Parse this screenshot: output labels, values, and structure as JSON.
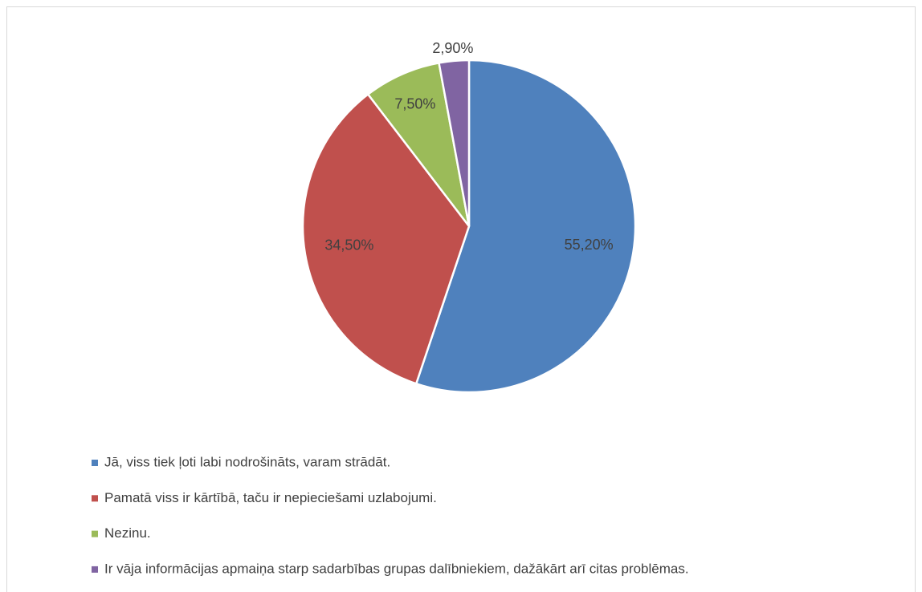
{
  "chart_data": {
    "type": "pie",
    "categories": [
      "Jā, viss tiek ļoti labi nodrošināts, varam strādāt.",
      "Pamatā viss ir kārtībā, taču ir nepieciešami uzlabojumi.",
      "Nezinu.",
      "Ir vāja informācijas apmaiņa starp sadarbības grupas dalībniekiem, dažākārt arī citas problēmas."
    ],
    "values": [
      55.2,
      34.5,
      7.5,
      2.9
    ],
    "value_labels": [
      "55,20%",
      "34,50%",
      "7,50%",
      "2,90%"
    ],
    "colors": [
      "#4f81bd",
      "#c0504d",
      "#9bbb59",
      "#8064a2"
    ],
    "legend": "bottom"
  }
}
